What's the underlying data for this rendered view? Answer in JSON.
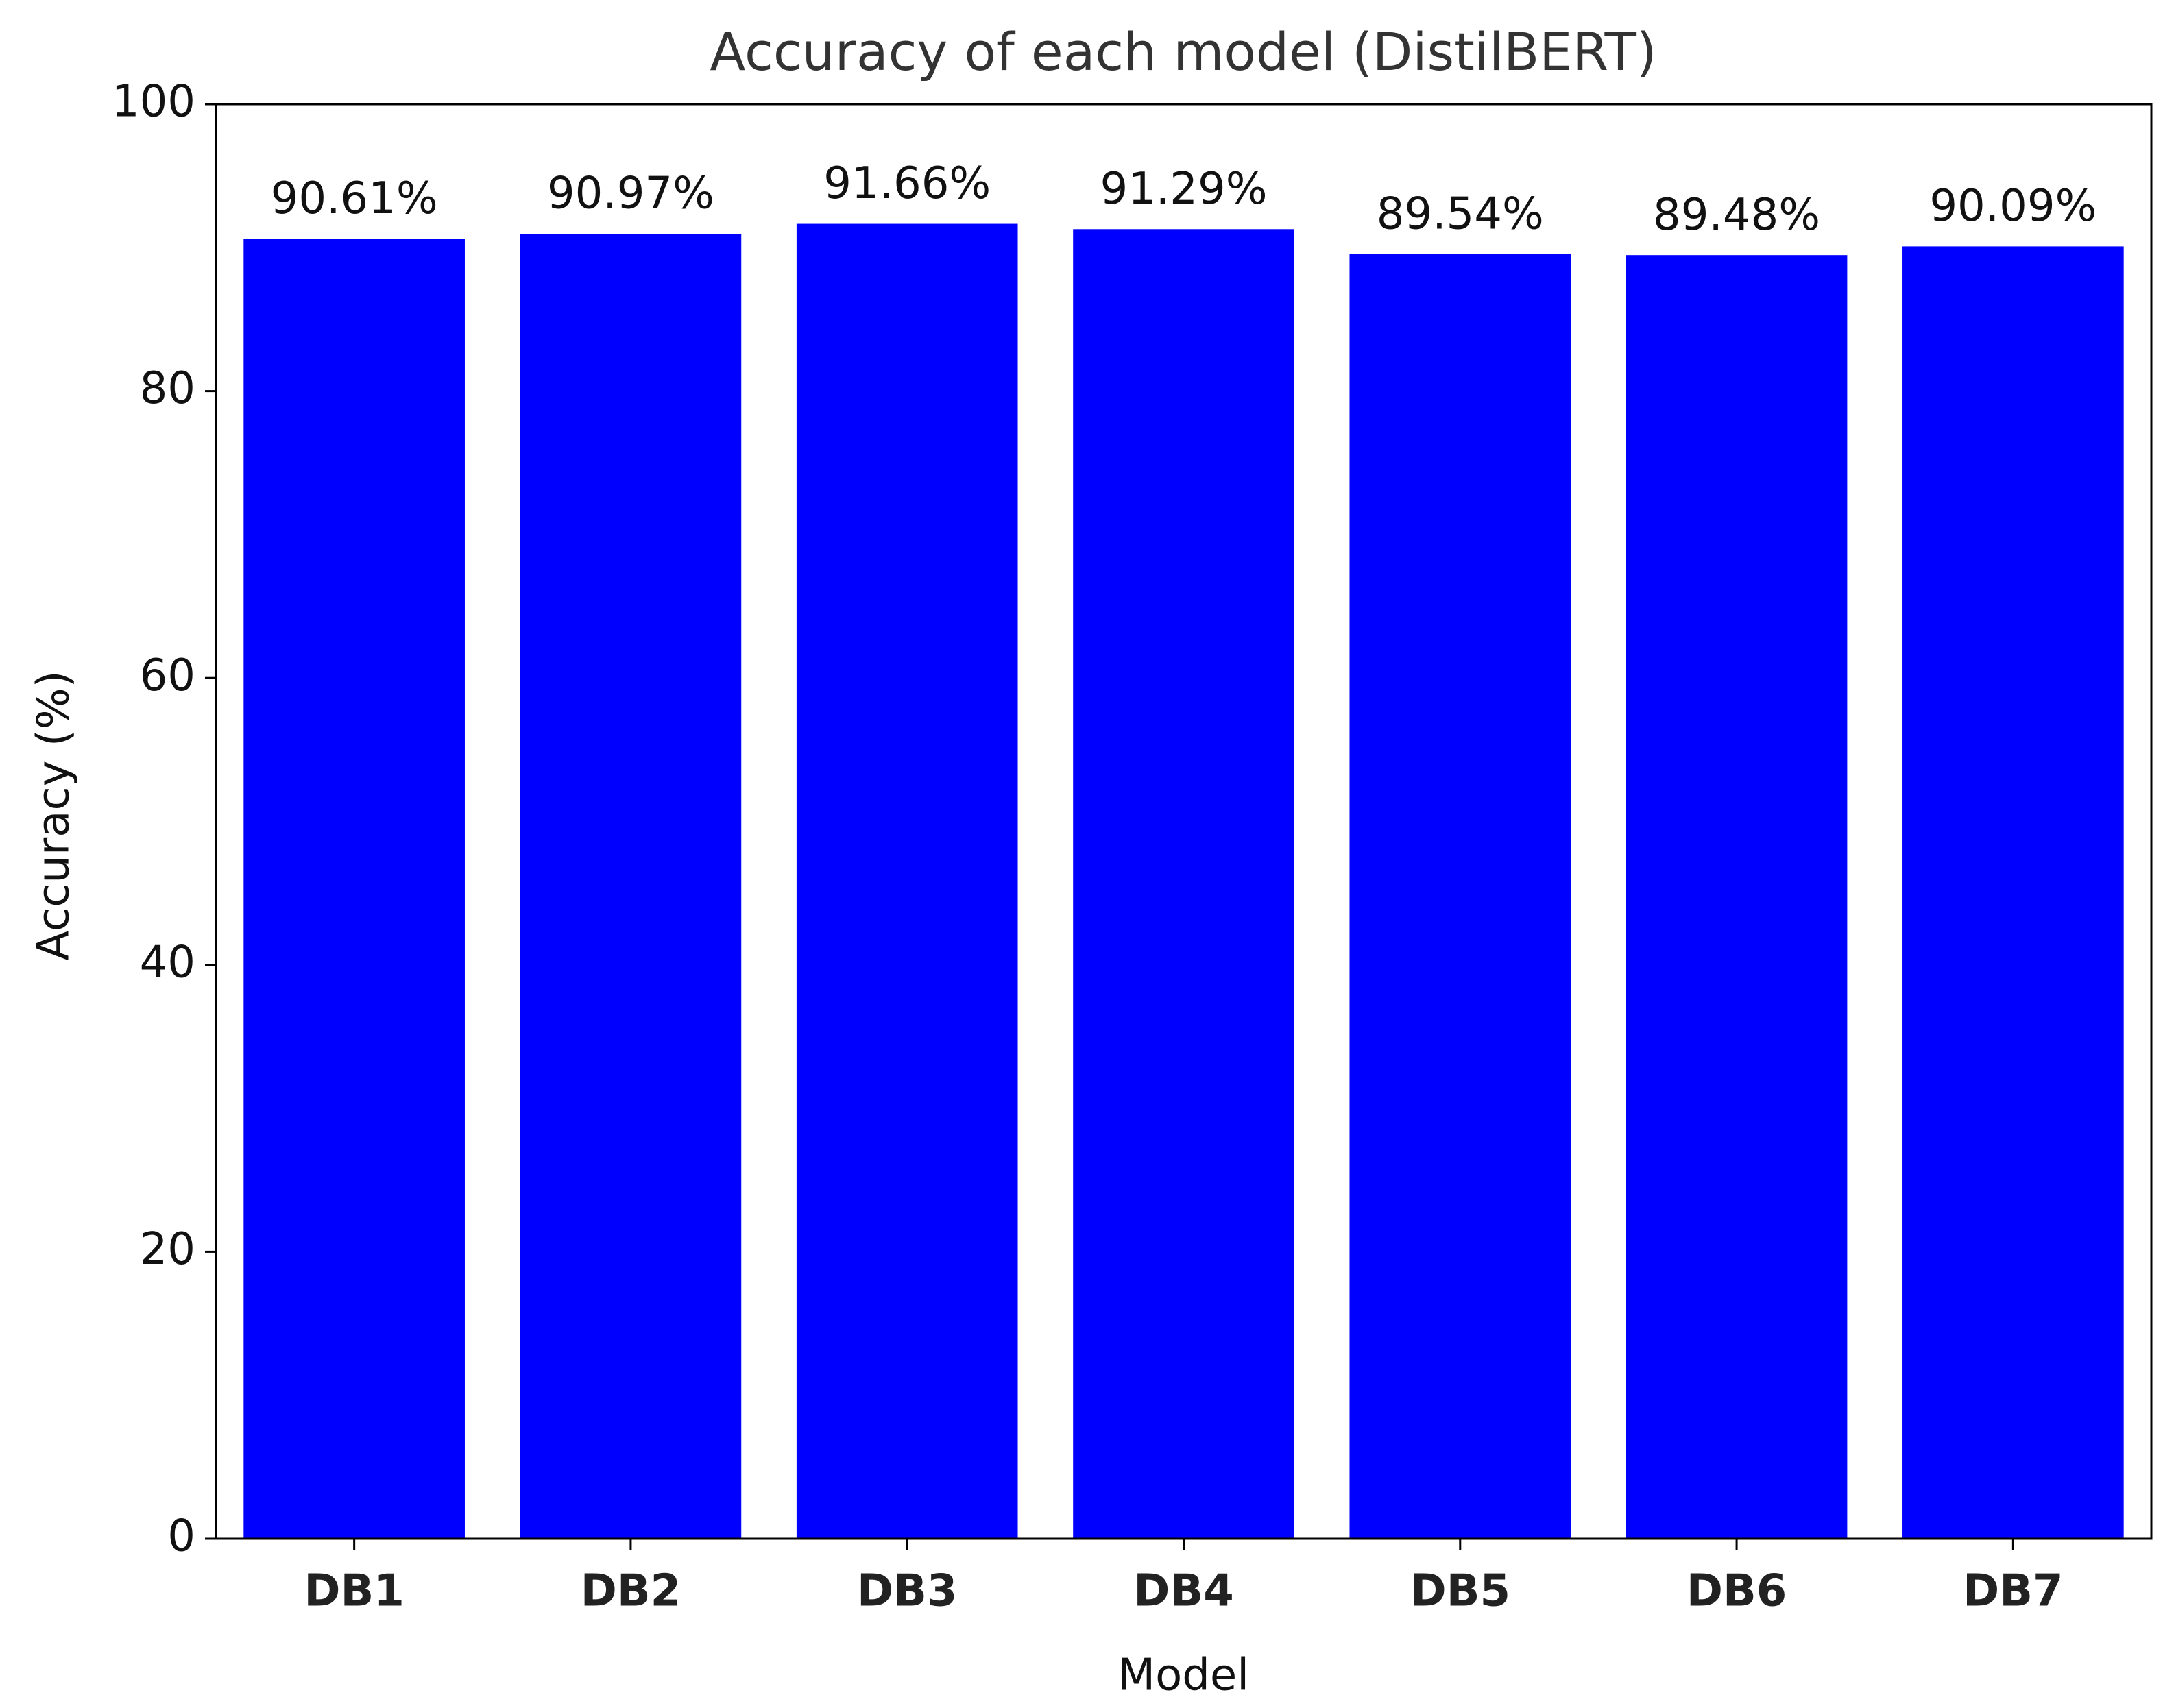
{
  "chart_data": {
    "type": "bar",
    "title": "Accuracy of each model (DistilBERT)",
    "x_label": "Model",
    "y_label": "Accuracy (%)",
    "categories": [
      "DB1",
      "DB2",
      "DB3",
      "DB4",
      "DB5",
      "DB6",
      "DB7"
    ],
    "values": [
      90.61,
      90.97,
      91.66,
      91.29,
      89.54,
      89.48,
      90.09
    ],
    "value_labels": [
      "90.61%",
      "90.97%",
      "91.66%",
      "91.29%",
      "89.54%",
      "89.48%",
      "90.09%"
    ],
    "color": "#0000ff",
    "ylim": [
      0,
      100
    ],
    "yticks": [
      0,
      20,
      40,
      60,
      80,
      100
    ],
    "grid": false
  }
}
